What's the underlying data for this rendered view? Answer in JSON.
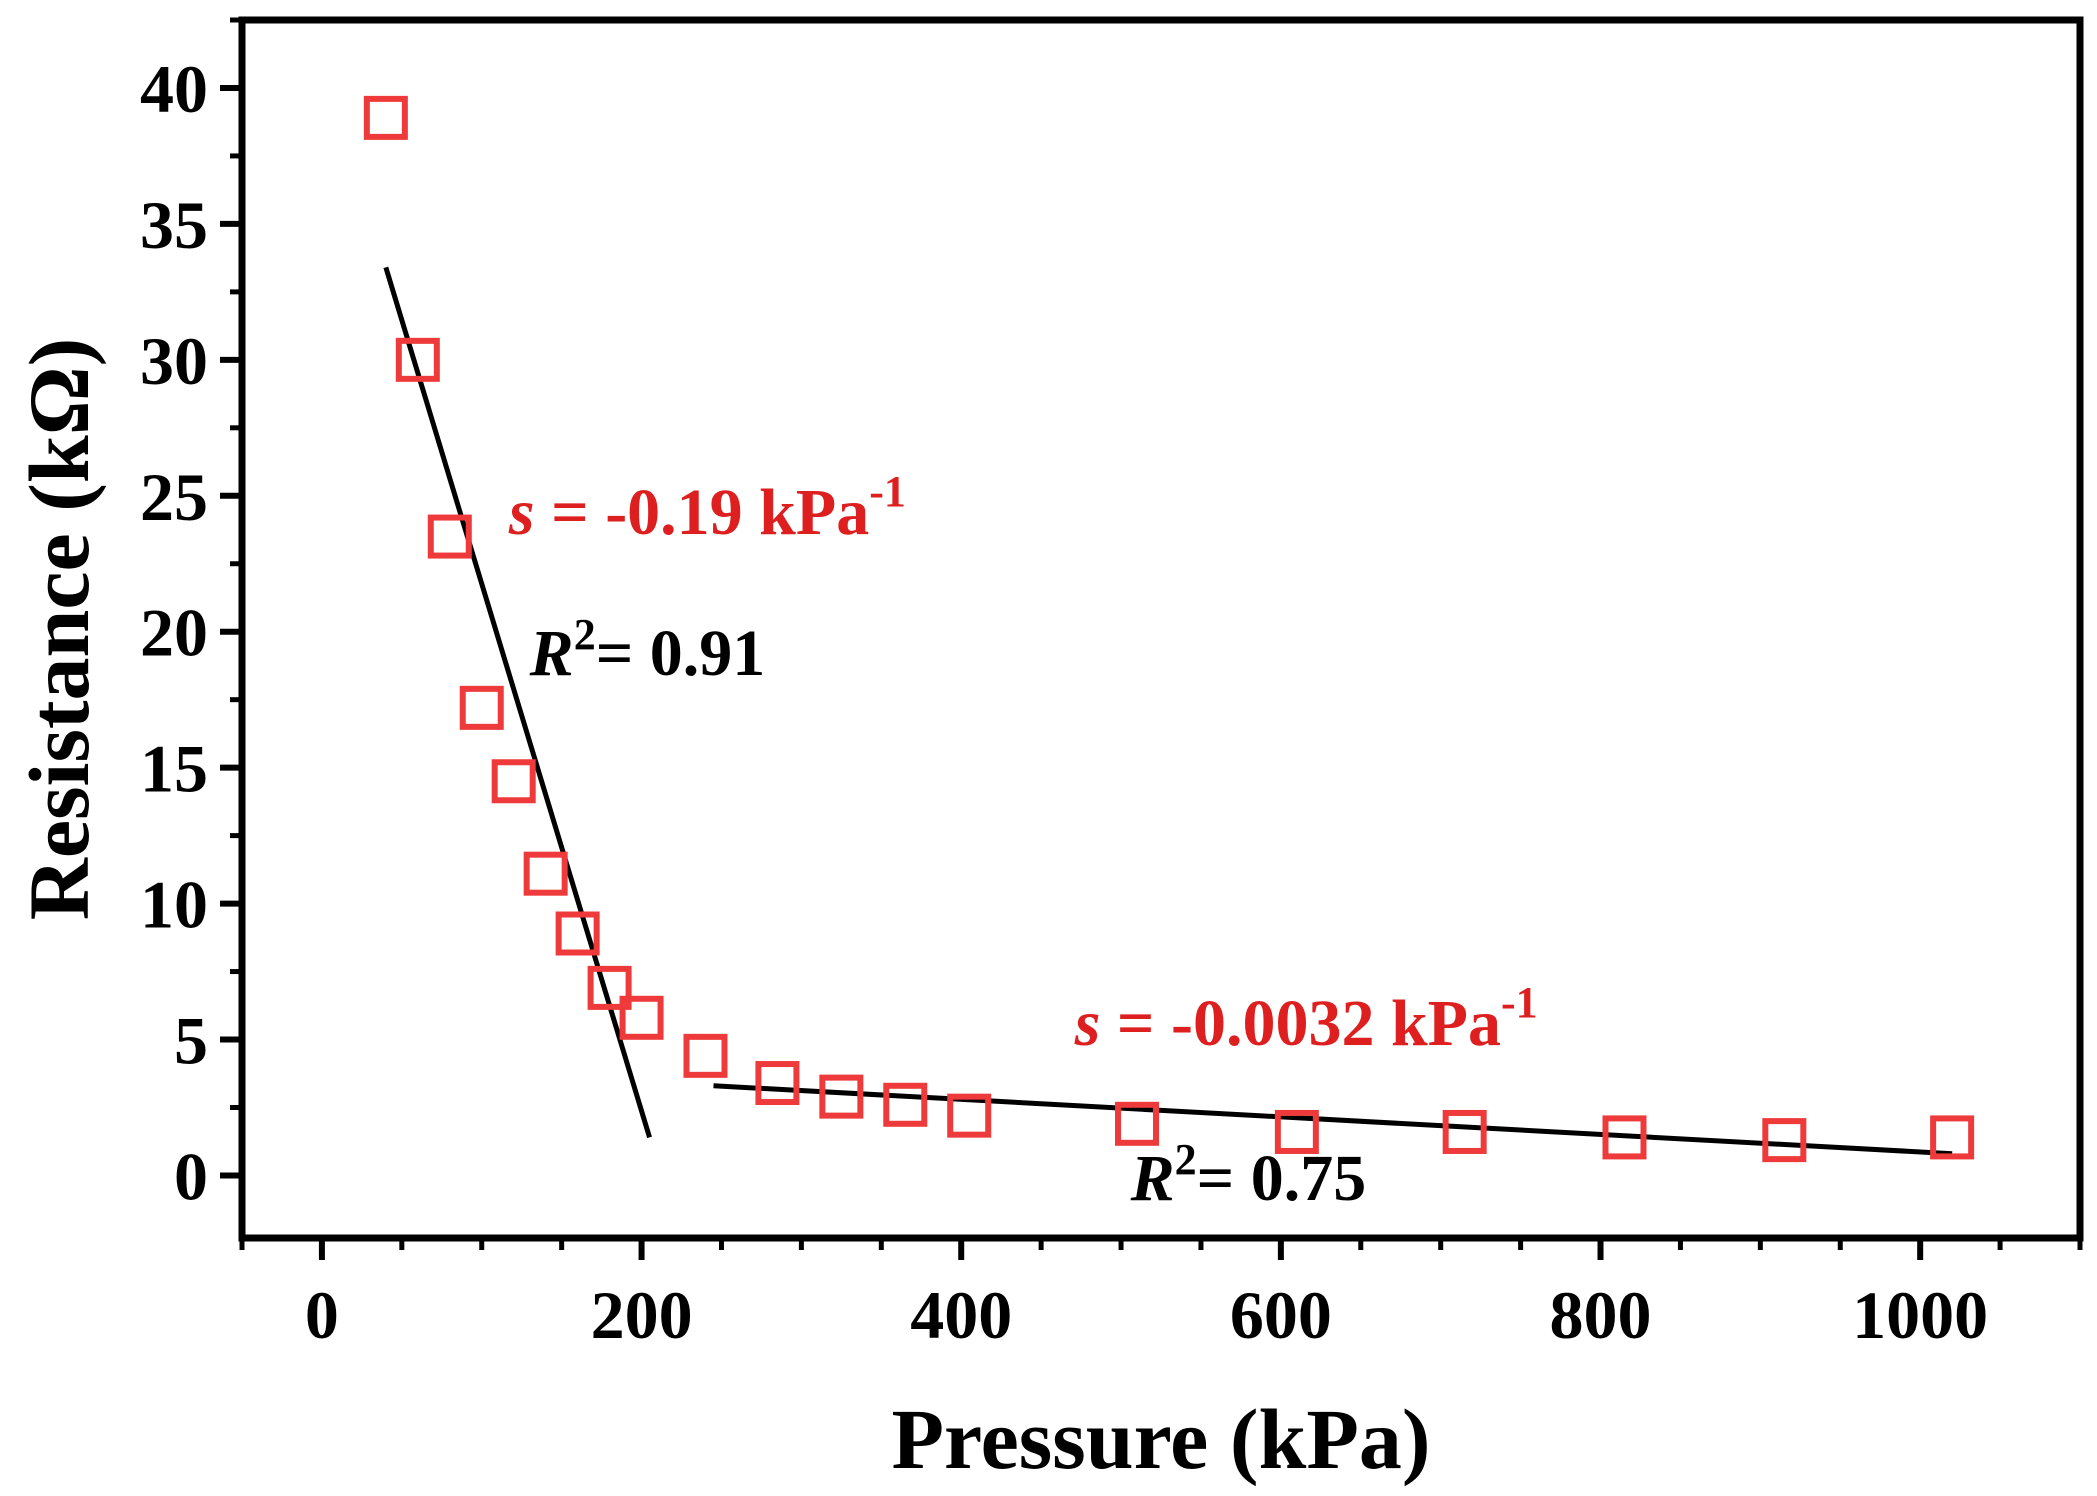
{
  "chart_data": {
    "type": "scatter",
    "title": "",
    "xlabel": "Pressure (kPa)",
    "ylabel": "Resistance (kΩ)",
    "xlim": [
      -50,
      1100
    ],
    "ylim": [
      -2.3,
      42.5
    ],
    "xticks": [
      0,
      200,
      400,
      600,
      800,
      1000
    ],
    "xtick_labels": [
      "0",
      "200",
      "400",
      "600",
      "800",
      "1000"
    ],
    "yticks": [
      0,
      5,
      10,
      15,
      20,
      25,
      30,
      35,
      40
    ],
    "ytick_labels": [
      "0",
      "5",
      "10",
      "15",
      "20",
      "25",
      "30",
      "35",
      "40"
    ],
    "grid": false,
    "colors": {
      "marker": "#ee3a3a",
      "fit": "#000000",
      "annotation": "#dd1f1f",
      "frame": "#000000"
    },
    "series": [
      {
        "name": "Resistance",
        "x": [
          40,
          60,
          80,
          100,
          120,
          140,
          160,
          180,
          200,
          240,
          285,
          325,
          365,
          405,
          510,
          610,
          715,
          815,
          915,
          1020
        ],
        "y": [
          38.9,
          30.0,
          23.5,
          17.2,
          14.5,
          11.1,
          8.9,
          6.9,
          5.8,
          4.4,
          3.4,
          2.9,
          2.6,
          2.2,
          1.9,
          1.6,
          1.6,
          1.4,
          1.3,
          1.4
        ]
      }
    ],
    "fits": [
      {
        "name": "fit-low-pressure",
        "x": [
          40,
          205
        ],
        "y": [
          33.4,
          1.4
        ]
      },
      {
        "name": "fit-high-pressure",
        "x": [
          245,
          1020
        ],
        "y": [
          3.3,
          0.8
        ]
      }
    ],
    "annotations": [
      {
        "id": "slope1",
        "prefix": "s",
        "text": " = -0.19 kPa",
        "sup": "-1",
        "color": "#dd1f1f",
        "x": 117,
        "y": 23.6
      },
      {
        "id": "r2a",
        "prefix": "R",
        "sup": "2",
        "text": "= 0.91",
        "color": "#000000",
        "x": 130,
        "y": 18.4
      },
      {
        "id": "slope2",
        "prefix": "s",
        "text": " = -0.0032 kPa",
        "sup": "-1",
        "color": "#dd1f1f",
        "x": 471,
        "y": 4.8
      },
      {
        "id": "r2b",
        "prefix": "R",
        "sup": "2",
        "text": "= 0.75",
        "color": "#000000",
        "x": 506,
        "y": -0.9
      }
    ]
  }
}
